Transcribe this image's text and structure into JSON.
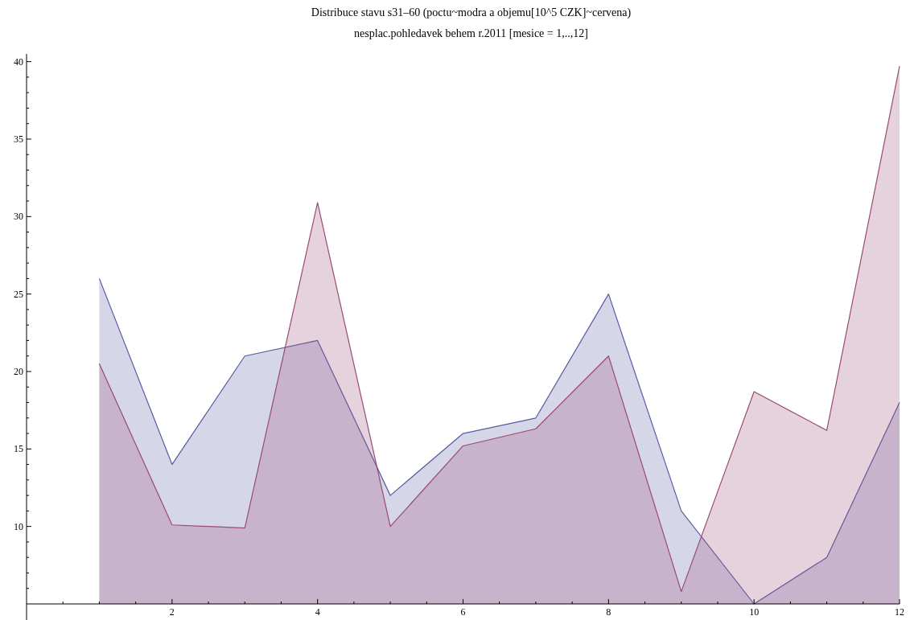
{
  "chart_data": {
    "type": "area",
    "title": "Distribuce stavu s31–60 (poctu~modra a objemu[10^5 CZK]~cervena)",
    "subtitle": "nesplac.pohledavek behem r.2011 [mesice = 1,..,12]",
    "x": [
      1,
      2,
      3,
      4,
      5,
      6,
      7,
      8,
      9,
      10,
      11,
      12
    ],
    "series": [
      {
        "color": "#5a5aa6",
        "values": [
          26,
          14,
          21,
          22,
          12,
          16,
          17,
          25,
          11,
          5,
          8,
          18
        ]
      },
      {
        "color": "#9a4a72",
        "values": [
          20.5,
          10.1,
          9.9,
          30.9,
          10,
          15.2,
          16.3,
          21,
          5.8,
          18.7,
          16.2,
          39.7
        ]
      }
    ],
    "xlim": [
      0,
      12
    ],
    "ylim": [
      5,
      40.5
    ],
    "xticks": [
      {
        "value": 0.5,
        "label": null
      },
      {
        "value": 1,
        "label": null
      },
      {
        "value": 1.5,
        "label": null
      },
      2,
      {
        "value": 2.5,
        "label": null
      },
      {
        "value": 3,
        "label": null
      },
      {
        "value": 3.5,
        "label": null
      },
      4,
      {
        "value": 4.5,
        "label": null
      },
      {
        "value": 5,
        "label": null
      },
      {
        "value": 5.5,
        "label": null
      },
      6,
      {
        "value": 6.5,
        "label": null
      },
      {
        "value": 7,
        "label": null
      },
      {
        "value": 7.5,
        "label": null
      },
      8,
      {
        "value": 8.5,
        "label": null
      },
      {
        "value": 9,
        "label": null
      },
      {
        "value": 9.5,
        "label": null
      },
      10,
      {
        "value": 10.5,
        "label": null
      },
      {
        "value": 11,
        "label": null
      },
      {
        "value": 11.5,
        "label": null
      },
      12
    ],
    "yticks": [
      {
        "value": 6,
        "label": null
      },
      {
        "value": 7,
        "label": null
      },
      {
        "value": 8,
        "label": null
      },
      {
        "value": 9,
        "label": null
      },
      10,
      {
        "value": 11,
        "label": null
      },
      {
        "value": 12,
        "label": null
      },
      {
        "value": 13,
        "label": null
      },
      {
        "value": 14,
        "label": null
      },
      15,
      {
        "value": 16,
        "label": null
      },
      {
        "value": 17,
        "label": null
      },
      {
        "value": 18,
        "label": null
      },
      {
        "value": 19,
        "label": null
      },
      20,
      {
        "value": 21,
        "label": null
      },
      {
        "value": 22,
        "label": null
      },
      {
        "value": 23,
        "label": null
      },
      {
        "value": 24,
        "label": null
      },
      25,
      {
        "value": 26,
        "label": null
      },
      {
        "value": 27,
        "label": null
      },
      {
        "value": 28,
        "label": null
      },
      {
        "value": 29,
        "label": null
      },
      30,
      {
        "value": 31,
        "label": null
      },
      {
        "value": 32,
        "label": null
      },
      {
        "value": 33,
        "label": null
      },
      {
        "value": 34,
        "label": null
      },
      35,
      {
        "value": 36,
        "label": null
      },
      {
        "value": 37,
        "label": null
      },
      {
        "value": 38,
        "label": null
      },
      {
        "value": 39,
        "label": null
      },
      40
    ],
    "grid": false
  }
}
